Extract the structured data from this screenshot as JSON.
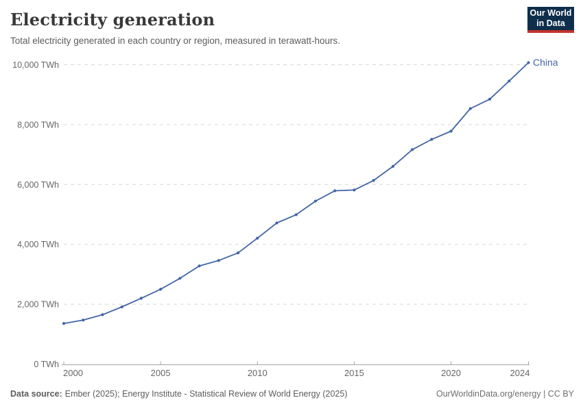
{
  "header": {
    "title": "Electricity generation",
    "subtitle": "Total electricity generated in each country or region, measured in terawatt-hours."
  },
  "logo": {
    "line1": "Our World",
    "line2": "in Data",
    "bg_color": "#0f2e4c",
    "accent_color": "#c4342d"
  },
  "chart_data": {
    "type": "line",
    "title": "Electricity generation",
    "subtitle": "Total electricity generated in each country or region, measured in terawatt-hours.",
    "unit": "TWh",
    "xlabel": "",
    "ylabel": "",
    "xlim": [
      2000,
      2024
    ],
    "ylim": [
      0,
      10000
    ],
    "grid": "horizontal-dashed",
    "legend_position": "end-of-line",
    "x_ticks": [
      2000,
      2005,
      2010,
      2015,
      2020,
      2024
    ],
    "x_tick_labels": [
      "2000",
      "2005",
      "2010",
      "2015",
      "2020",
      "2024"
    ],
    "y_ticks": [
      0,
      2000,
      4000,
      6000,
      8000,
      10000
    ],
    "y_tick_labels": [
      "0 TWh",
      "2,000 TWh",
      "4,000 TWh",
      "6,000 TWh",
      "8,000 TWh",
      "10,000 TWh"
    ],
    "series": [
      {
        "name": "China",
        "color": "#4165a5",
        "x": [
          2000,
          2001,
          2002,
          2003,
          2004,
          2005,
          2006,
          2007,
          2008,
          2009,
          2010,
          2011,
          2012,
          2013,
          2014,
          2015,
          2016,
          2017,
          2018,
          2019,
          2020,
          2021,
          2022,
          2023,
          2024
        ],
        "values": [
          1356,
          1470,
          1650,
          1910,
          2200,
          2500,
          2865,
          3280,
          3460,
          3715,
          4205,
          4715,
          4990,
          5445,
          5790,
          5815,
          6135,
          6605,
          7165,
          7505,
          7780,
          8535,
          8850,
          9455,
          10070
        ]
      }
    ],
    "style": {
      "grid_color": "#d7d7d7",
      "axis_color": "#a5a5a5",
      "tick_label_color": "#666666"
    }
  },
  "footer": {
    "source_label": "Data source:",
    "source_text": "Ember (2025); Energy Institute - Statistical Review of World Energy (2025)",
    "right_text": "OurWorldinData.org/energy | CC BY"
  }
}
